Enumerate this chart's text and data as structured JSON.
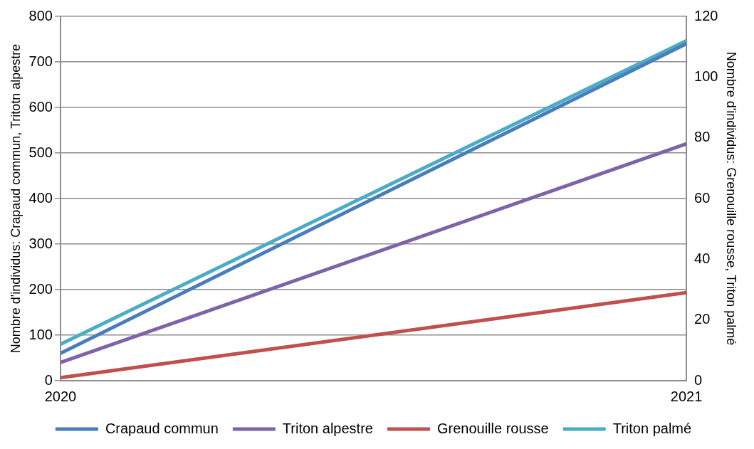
{
  "chart_data": {
    "type": "line",
    "ylabel": "Nombre d'individus: Crapaud commun, Tritotn alpestre",
    "y2label": "Nombre d'individus: Grenouille rousse, Triton palmé",
    "x": [
      2020,
      2021
    ],
    "xlim": [
      2020,
      2021
    ],
    "xticks": [
      2020,
      2021
    ],
    "ylim": [
      0,
      800
    ],
    "yticks": [
      0,
      100,
      200,
      300,
      400,
      500,
      600,
      700,
      800
    ],
    "y2lim": [
      0,
      120
    ],
    "y2ticks": [
      0,
      20,
      40,
      60,
      80,
      100,
      120
    ],
    "grid": "y",
    "legend": "bottom",
    "marker": "none",
    "line_style": "solid",
    "series": [
      {
        "name": "Crapaud commun",
        "color": "#4a7ebb",
        "values": [
          60,
          740
        ]
      },
      {
        "name": "Triton alpestre",
        "color": "#7f63a8",
        "values": [
          40,
          520
        ]
      },
      {
        "name": "Grenouille rousse",
        "color": "#c0504d",
        "axis": "y2",
        "values": [
          1,
          29
        ]
      },
      {
        "name": "Triton palmé",
        "color": "#4bacc6",
        "axis": "y2",
        "values": [
          12,
          112
        ]
      }
    ]
  }
}
